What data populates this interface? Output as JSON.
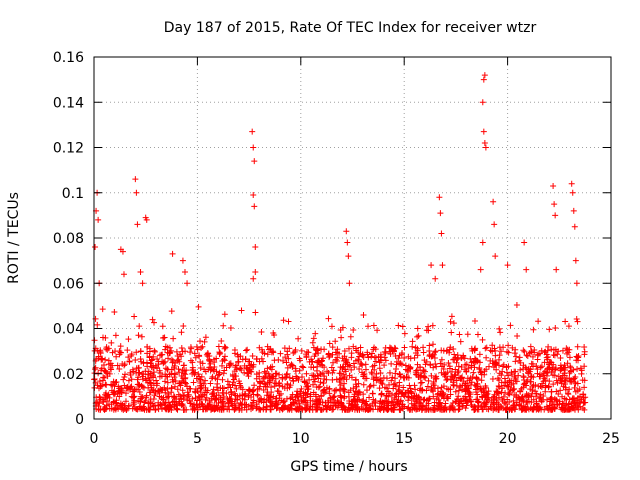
{
  "chart_data": {
    "type": "scatter",
    "title": "Day 187 of 2015, Rate Of TEC Index for receiver wtzr",
    "xlabel": "GPS time / hours",
    "ylabel": "ROTI / TECUs",
    "xlim": [
      0,
      25
    ],
    "ylim": [
      0,
      0.16
    ],
    "xticks": [
      0,
      5,
      10,
      15,
      20,
      25
    ],
    "xtick_labels": [
      "0",
      "5",
      "10",
      "15",
      "20",
      "25"
    ],
    "yticks": [
      0,
      0.02,
      0.04,
      0.06,
      0.08,
      0.1,
      0.12,
      0.14,
      0.16
    ],
    "ytick_labels": [
      "0",
      "0.02",
      "0.04",
      "0.06",
      "0.08",
      "0.1",
      "0.12",
      "0.14",
      "0.16"
    ],
    "grid": true,
    "marker": "+",
    "color": "#ff0000",
    "data_range_x": [
      0,
      23.75
    ],
    "series": [
      {
        "name": "ROTI",
        "points": [
          [
            0.05,
            0.076
          ],
          [
            0.1,
            0.092
          ],
          [
            0.15,
            0.1
          ],
          [
            0.2,
            0.088
          ],
          [
            0.25,
            0.06
          ],
          [
            1.3,
            0.075
          ],
          [
            1.4,
            0.074
          ],
          [
            1.45,
            0.064
          ],
          [
            2.0,
            0.106
          ],
          [
            2.05,
            0.1
          ],
          [
            2.1,
            0.086
          ],
          [
            2.25,
            0.065
          ],
          [
            2.35,
            0.06
          ],
          [
            2.5,
            0.089
          ],
          [
            2.55,
            0.088
          ],
          [
            3.8,
            0.073
          ],
          [
            4.3,
            0.07
          ],
          [
            4.4,
            0.065
          ],
          [
            4.5,
            0.06
          ],
          [
            7.65,
            0.127
          ],
          [
            7.7,
            0.12
          ],
          [
            7.75,
            0.114
          ],
          [
            7.7,
            0.099
          ],
          [
            7.75,
            0.094
          ],
          [
            7.8,
            0.076
          ],
          [
            7.7,
            0.062
          ],
          [
            7.8,
            0.065
          ],
          [
            12.2,
            0.083
          ],
          [
            12.25,
            0.078
          ],
          [
            12.3,
            0.072
          ],
          [
            12.35,
            0.06
          ],
          [
            16.3,
            0.068
          ],
          [
            16.5,
            0.062
          ],
          [
            16.7,
            0.098
          ],
          [
            16.75,
            0.091
          ],
          [
            16.8,
            0.082
          ],
          [
            16.85,
            0.068
          ],
          [
            18.85,
            0.15
          ],
          [
            18.9,
            0.152
          ],
          [
            18.8,
            0.14
          ],
          [
            18.85,
            0.127
          ],
          [
            18.9,
            0.122
          ],
          [
            18.95,
            0.12
          ],
          [
            18.8,
            0.078
          ],
          [
            18.7,
            0.066
          ],
          [
            19.3,
            0.096
          ],
          [
            19.35,
            0.086
          ],
          [
            19.4,
            0.072
          ],
          [
            20.0,
            0.068
          ],
          [
            20.8,
            0.078
          ],
          [
            20.9,
            0.066
          ],
          [
            22.2,
            0.103
          ],
          [
            22.25,
            0.095
          ],
          [
            22.3,
            0.09
          ],
          [
            22.35,
            0.066
          ],
          [
            23.1,
            0.104
          ],
          [
            23.15,
            0.1
          ],
          [
            23.2,
            0.092
          ],
          [
            23.25,
            0.085
          ],
          [
            23.3,
            0.07
          ],
          [
            23.35,
            0.06
          ]
        ]
      }
    ]
  }
}
